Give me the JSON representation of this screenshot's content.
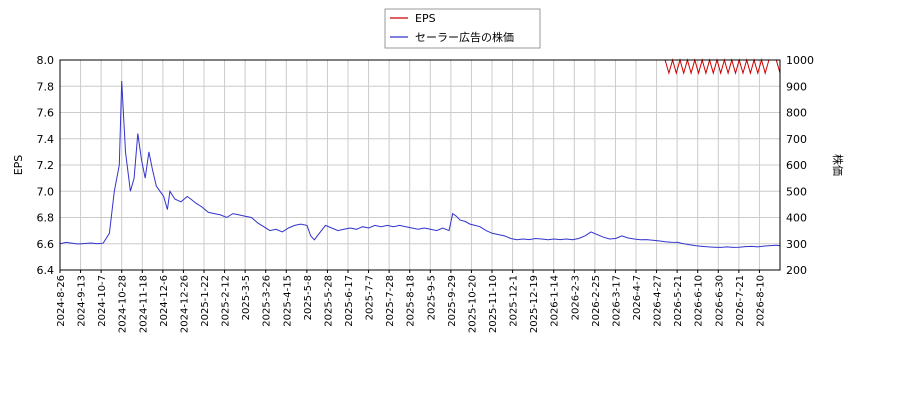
{
  "chart_data": {
    "type": "line",
    "legend": {
      "placement": "top-center",
      "entries": [
        {
          "label": "EPS",
          "color": "#cc0000"
        },
        {
          "label": "セーラー広告の株価",
          "color": "#3333cc"
        }
      ]
    },
    "left_axis": {
      "label": "EPS",
      "ylim": [
        6.4,
        8.0
      ],
      "ticks": [
        "6.4",
        "6.6",
        "6.8",
        "7.0",
        "7.2",
        "7.4",
        "7.6",
        "7.8",
        "8.0"
      ]
    },
    "right_axis": {
      "label": "株価",
      "ylim": [
        200,
        1000
      ],
      "ticks": [
        "200",
        "300",
        "400",
        "500",
        "600",
        "700",
        "800",
        "900",
        "1000"
      ]
    },
    "x_tick_labels": [
      "2024-8-26",
      "2024-9-13",
      "2024-10-7",
      "2024-10-28",
      "2024-11-18",
      "2024-12-6",
      "2024-12-26",
      "2025-1-22",
      "2025-2-12",
      "2025-3-5",
      "2025-3-26",
      "2025-4-15",
      "2025-5-8",
      "2025-5-28",
      "2025-6-17",
      "2025-7-7",
      "2025-7-28",
      "2025-8-18",
      "2025-9-5",
      "2025-9-29",
      "2025-10-20",
      "2025-11-10",
      "2025-12-1",
      "2025-12-19",
      "2026-1-14",
      "2026-2-3",
      "2026-2-25",
      "2026-3-17",
      "2026-4-7",
      "2026-4-27",
      "2026-5-21",
      "2026-6-10",
      "2026-6-30",
      "2026-7-21",
      "2026-8-10"
    ],
    "grid": true,
    "series": [
      {
        "name": "セーラー広告の株価",
        "axis": "right",
        "color": "#3333cc",
        "points": [
          [
            0,
            300
          ],
          [
            0.5,
            305
          ],
          [
            1,
            302
          ],
          [
            1.5,
            299
          ],
          [
            2,
            301
          ],
          [
            2.5,
            303
          ],
          [
            3,
            300
          ],
          [
            3.5,
            302
          ],
          [
            4,
            340
          ],
          [
            4.4,
            500
          ],
          [
            4.8,
            600
          ],
          [
            5.0,
            920
          ],
          [
            5.3,
            650
          ],
          [
            5.7,
            500
          ],
          [
            6.0,
            550
          ],
          [
            6.3,
            720
          ],
          [
            6.6,
            620
          ],
          [
            6.9,
            550
          ],
          [
            7.2,
            650
          ],
          [
            7.5,
            580
          ],
          [
            7.8,
            520
          ],
          [
            8.1,
            500
          ],
          [
            8.4,
            480
          ],
          [
            8.7,
            430
          ],
          [
            8.9,
            500
          ],
          [
            9.3,
            470
          ],
          [
            9.8,
            460
          ],
          [
            10.3,
            480
          ],
          [
            10.6,
            470
          ],
          [
            11,
            455
          ],
          [
            11.5,
            440
          ],
          [
            12,
            420
          ],
          [
            12.5,
            415
          ],
          [
            13,
            410
          ],
          [
            13.5,
            400
          ],
          [
            14,
            415
          ],
          [
            14.5,
            410
          ],
          [
            15,
            405
          ],
          [
            15.5,
            400
          ],
          [
            16,
            380
          ],
          [
            16.5,
            365
          ],
          [
            17,
            350
          ],
          [
            17.5,
            355
          ],
          [
            18,
            345
          ],
          [
            18.5,
            360
          ],
          [
            19,
            370
          ],
          [
            19.5,
            375
          ],
          [
            20,
            370
          ],
          [
            20.3,
            330
          ],
          [
            20.6,
            315
          ],
          [
            21,
            340
          ],
          [
            21.5,
            370
          ],
          [
            22,
            360
          ],
          [
            22.5,
            350
          ],
          [
            23,
            355
          ],
          [
            23.5,
            360
          ],
          [
            24,
            355
          ],
          [
            24.5,
            365
          ],
          [
            25,
            360
          ],
          [
            25.5,
            370
          ],
          [
            26,
            365
          ],
          [
            26.5,
            370
          ],
          [
            27,
            365
          ],
          [
            27.5,
            370
          ],
          [
            28,
            365
          ],
          [
            28.5,
            360
          ],
          [
            29,
            355
          ],
          [
            29.5,
            360
          ],
          [
            30,
            355
          ],
          [
            30.5,
            350
          ],
          [
            31,
            360
          ],
          [
            31.5,
            350
          ],
          [
            31.8,
            415
          ],
          [
            32.1,
            405
          ],
          [
            32.4,
            390
          ],
          [
            32.8,
            385
          ],
          [
            33.2,
            375
          ],
          [
            33.6,
            370
          ],
          [
            34,
            365
          ],
          [
            34.5,
            350
          ],
          [
            35,
            340
          ],
          [
            35.5,
            335
          ],
          [
            36,
            330
          ],
          [
            36.5,
            320
          ],
          [
            37,
            315
          ],
          [
            37.5,
            318
          ],
          [
            38,
            316
          ],
          [
            38.5,
            320
          ],
          [
            39,
            318
          ],
          [
            39.5,
            315
          ],
          [
            40,
            318
          ],
          [
            40.5,
            316
          ],
          [
            41,
            318
          ],
          [
            41.5,
            315
          ],
          [
            42,
            320
          ],
          [
            42.5,
            330
          ],
          [
            43,
            345
          ],
          [
            43.5,
            335
          ],
          [
            44,
            325
          ],
          [
            44.5,
            318
          ],
          [
            45,
            320
          ],
          [
            45.5,
            330
          ],
          [
            46,
            322
          ],
          [
            46.5,
            318
          ],
          [
            47,
            315
          ],
          [
            47.5,
            316
          ],
          [
            48,
            313
          ],
          [
            48.5,
            311
          ],
          [
            49,
            308
          ],
          [
            49.5,
            306
          ],
          [
            50,
            305
          ],
          [
            50.5,
            300
          ],
          [
            51,
            296
          ],
          [
            51.5,
            292
          ],
          [
            52,
            290
          ],
          [
            52.5,
            288
          ],
          [
            53,
            287
          ],
          [
            53.5,
            286
          ],
          [
            54,
            288
          ],
          [
            54.5,
            286
          ],
          [
            55,
            287
          ],
          [
            55.5,
            289
          ],
          [
            56,
            290
          ],
          [
            56.5,
            288
          ],
          [
            57,
            291
          ],
          [
            57.5,
            293
          ],
          [
            58,
            294
          ],
          [
            58.3,
            292
          ]
        ]
      },
      {
        "name": "EPS",
        "axis": "left",
        "color": "#cc0000",
        "points": [
          [
            46.5,
            8.0
          ],
          [
            48.5,
            8.0
          ],
          [
            49.0,
            8.0
          ],
          [
            49.3,
            7.9
          ],
          [
            49.6,
            8.0
          ],
          [
            49.9,
            7.9
          ],
          [
            50.2,
            8.0
          ],
          [
            50.5,
            7.9
          ],
          [
            50.8,
            8.0
          ],
          [
            51.1,
            7.9
          ],
          [
            51.4,
            8.0
          ],
          [
            51.7,
            7.9
          ],
          [
            52.0,
            8.0
          ],
          [
            52.3,
            7.9
          ],
          [
            52.6,
            8.0
          ],
          [
            52.9,
            7.9
          ],
          [
            53.2,
            8.0
          ],
          [
            53.5,
            7.9
          ],
          [
            53.8,
            8.0
          ],
          [
            54.1,
            7.9
          ],
          [
            54.4,
            8.0
          ],
          [
            54.7,
            7.9
          ],
          [
            55.0,
            8.0
          ],
          [
            55.3,
            7.9
          ],
          [
            55.6,
            8.0
          ],
          [
            55.9,
            7.9
          ],
          [
            56.2,
            8.0
          ],
          [
            56.5,
            7.9
          ],
          [
            56.8,
            8.0
          ],
          [
            57.1,
            7.9
          ],
          [
            57.4,
            8.0
          ],
          [
            57.7,
            8.0
          ],
          [
            58.0,
            8.0
          ],
          [
            58.3,
            7.9
          ]
        ]
      }
    ]
  }
}
